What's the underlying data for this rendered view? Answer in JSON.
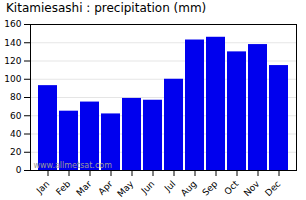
{
  "chart_data": {
    "type": "bar",
    "title": "Kitamiesashi : precipitation (mm)",
    "categories": [
      "Jan",
      "Feb",
      "Mar",
      "Apr",
      "May",
      "Jun",
      "Jul",
      "Aug",
      "Sep",
      "Oct",
      "Nov",
      "Dec"
    ],
    "values": [
      93,
      65,
      75,
      62,
      79,
      77,
      100,
      143,
      146,
      130,
      138,
      115
    ],
    "color": "#0000ee",
    "ylim": [
      0,
      160
    ],
    "yticks": [
      0,
      20,
      40,
      60,
      80,
      100,
      120,
      140,
      160
    ],
    "grid": true,
    "annotations": [
      "www.allmetsat.com"
    ]
  }
}
